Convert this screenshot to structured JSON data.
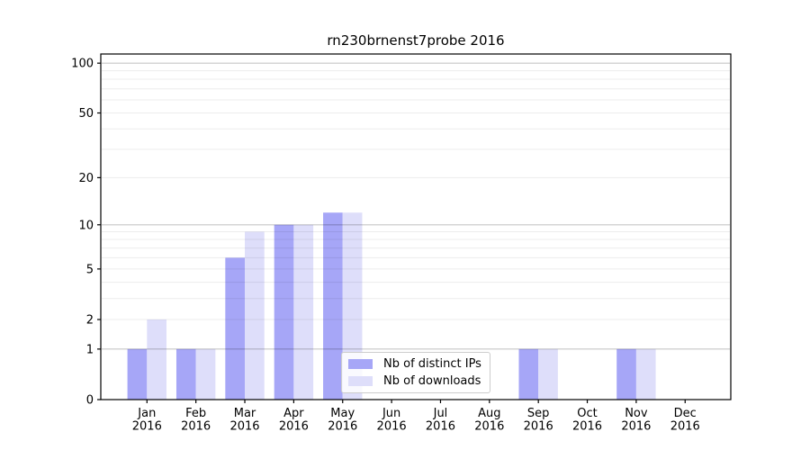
{
  "chart_data": {
    "type": "bar",
    "title": "rn230brnenst7probe 2016",
    "categories": [
      "Jan 2016",
      "Feb 2016",
      "Mar 2016",
      "Apr 2016",
      "May 2016",
      "Jun 2016",
      "Jul 2016",
      "Aug 2016",
      "Sep 2016",
      "Oct 2016",
      "Nov 2016",
      "Dec 2016"
    ],
    "series": [
      {
        "name": "Nb of distinct IPs",
        "color": "#a6a6f7",
        "values": [
          1,
          1,
          6,
          10,
          12,
          0,
          0,
          0,
          1,
          0,
          1,
          0
        ]
      },
      {
        "name": "Nb of downloads",
        "color": "#dedefa",
        "values": [
          2,
          1,
          9,
          10,
          12,
          0,
          0,
          0,
          1,
          0,
          1,
          0
        ]
      }
    ],
    "yticks": [
      0,
      1,
      2,
      5,
      10,
      20,
      50,
      100
    ],
    "major_gridlines": [
      1,
      10,
      100
    ],
    "light_gridlines": [
      2,
      5,
      20,
      50
    ],
    "minor_gridlines": [
      3,
      4,
      6,
      7,
      8,
      9,
      30,
      40,
      60,
      70,
      80,
      90
    ],
    "scale": "log1p",
    "ylim": [
      0,
      113
    ],
    "grid": true,
    "legend_position": "lower center",
    "colors": {
      "grid_major": "rgba(0,0,0,0.22)",
      "grid_minor": "rgba(0,0,0,0.075)",
      "axis": "#000000",
      "tick_label": "#000000"
    }
  }
}
